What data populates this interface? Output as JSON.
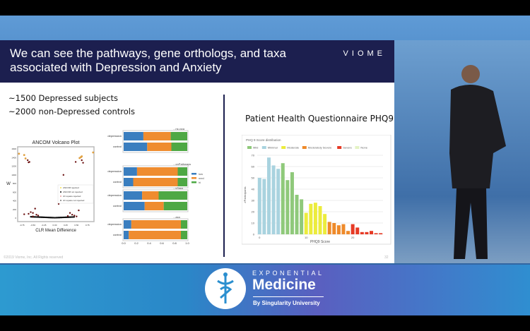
{
  "slide": {
    "title": "We can see the pathways, gene orthologs, and taxa associated with Depression and Anxiety",
    "logo": "VIOME",
    "stats": [
      "~1500 Depressed subjects",
      "~2000 non-Depressed controls"
    ],
    "phq_heading": "Patient Health Questionnaire PHQ9",
    "copyright": "©2019 Viome, Inc. All Rights reserved",
    "page_number": "32"
  },
  "banner": {
    "top": "EXPONENTIAL",
    "main": "Medicine",
    "sub": "By Singularity University"
  },
  "colors": {
    "navy": "#1c1f4f",
    "low": "#3a7ebf",
    "med": "#ef8c2f",
    "hi": "#4ea844"
  },
  "chart_data": [
    {
      "type": "scatter",
      "title": "ANCOM Volcano Plot",
      "xlabel": "CLR Mean Difference",
      "ylabel": "W",
      "xlim": [
        -0.85,
        0.9
      ],
      "ylim": [
        -80,
        1650
      ],
      "xticks": [
        "-0.75",
        "-0.50",
        "-0.25",
        "0.00",
        "0.25",
        "0.50",
        "0.75"
      ],
      "xtick_values": [
        -0.75,
        -0.5,
        -0.25,
        0,
        0.25,
        0.5,
        0.75
      ],
      "yticks": [
        "0",
        "200",
        "400",
        "600",
        "800",
        "1000",
        "1200",
        "1400",
        "1600"
      ],
      "legend": [
        "ANCOM rejected",
        "ANCOM not rejected",
        "chi square rejected",
        "chi square not rejected"
      ],
      "rejected": [
        [
          -0.82,
          1490
        ],
        [
          -0.7,
          1460
        ],
        [
          -0.67,
          1380
        ],
        [
          0.57,
          1390
        ],
        [
          0.6,
          1410
        ],
        [
          0.62,
          1430
        ],
        [
          0.88,
          1520
        ]
      ],
      "chi_rejected": [
        [
          -0.62,
          1340
        ],
        [
          -0.6,
          1290
        ],
        [
          -0.58,
          1300
        ],
        [
          0.48,
          1300
        ],
        [
          0.62,
          1340
        ],
        [
          0.65,
          1280
        ],
        [
          0.2,
          1000
        ],
        [
          0.09,
          330
        ],
        [
          -0.45,
          220
        ],
        [
          0.55,
          180
        ],
        [
          -0.7,
          90
        ],
        [
          -0.6,
          100
        ],
        [
          -0.55,
          140
        ],
        [
          -0.5,
          120
        ],
        [
          -0.42,
          80
        ],
        [
          -0.38,
          60
        ],
        [
          0.35,
          120
        ],
        [
          0.4,
          80
        ],
        [
          0.45,
          60
        ],
        [
          0.5,
          40
        ],
        [
          -0.5,
          40
        ],
        [
          0.3,
          50
        ]
      ],
      "not_rejected_range": [
        -0.55,
        0.45
      ]
    },
    {
      "type": "bar",
      "stacked": true,
      "orientation": "horizontal",
      "legend": [
        "low",
        "med",
        "hi"
      ],
      "xticks": [
        "0.0",
        "0.2",
        "0.4",
        "0.6",
        "0.8",
        "1.0"
      ],
      "panels": [
        {
          "title": "...nsTaxa",
          "rows": [
            {
              "label": "depression",
              "values": [
                0.31,
                0.43,
                0.26
              ]
            },
            {
              "label": "control",
              "values": [
                0.37,
                0.38,
                0.25
              ]
            }
          ]
        },
        {
          "title": "...onPathways",
          "rows": [
            {
              "label": "depression",
              "values": [
                0.21,
                0.64,
                0.15
              ]
            },
            {
              "label": "control",
              "values": [
                0.15,
                0.7,
                0.15
              ]
            }
          ]
        },
        {
          "title": "...sTaxa",
          "rows": [
            {
              "label": "depression",
              "values": [
                0.29,
                0.26,
                0.45
              ]
            },
            {
              "label": "control",
              "values": [
                0.33,
                0.3,
                0.37
              ]
            }
          ]
        },
        {
          "title": "...axa",
          "rows": [
            {
              "label": "depression",
              "values": [
                0.12,
                0.78,
                0.1
              ]
            },
            {
              "label": "control",
              "values": [
                0.08,
                0.82,
                0.1
              ]
            }
          ]
        }
      ]
    },
    {
      "type": "bar",
      "title": "PHQ 9 Score distribution",
      "xlabel": "PHQ9 Score",
      "ylabel": "#Participants",
      "ylim": [
        0,
        70
      ],
      "yticks": [
        "0",
        "10",
        "20",
        "30",
        "40",
        "50",
        "60",
        "70"
      ],
      "xticks": [
        "0",
        "10",
        "20"
      ],
      "legend": [
        {
          "name": "Mild",
          "color": "#8fc97a"
        },
        {
          "name": "Minimal",
          "color": "#a9d3df"
        },
        {
          "name": "Moderate",
          "color": "#ecec3c"
        },
        {
          "name": "Moderately Severe",
          "color": "#ee8a2a"
        },
        {
          "name": "Severe",
          "color": "#e63a25"
        },
        {
          "name": "None",
          "color": "#e4f3c4"
        }
      ],
      "x": [
        0,
        1,
        2,
        3,
        4,
        5,
        6,
        7,
        8,
        9,
        10,
        11,
        12,
        13,
        14,
        15,
        16,
        17,
        18,
        19,
        20,
        21,
        22,
        23,
        24,
        25,
        26
      ],
      "values": [
        50,
        49,
        68,
        61,
        58,
        63,
        48,
        55,
        35,
        31,
        19,
        27,
        28,
        25,
        18,
        11,
        10,
        8,
        9,
        3,
        9,
        6,
        2,
        2,
        3,
        1,
        1
      ],
      "category": [
        "Minimal",
        "Minimal",
        "Minimal",
        "Minimal",
        "Minimal",
        "Mild",
        "Mild",
        "Mild",
        "Mild",
        "Mild",
        "Moderate",
        "Moderate",
        "Moderate",
        "Moderate",
        "Moderate",
        "Moderately Severe",
        "Moderately Severe",
        "Moderately Severe",
        "Moderately Severe",
        "Moderately Severe",
        "Severe",
        "Severe",
        "Severe",
        "Severe",
        "Severe",
        "Severe",
        "Severe"
      ]
    }
  ]
}
